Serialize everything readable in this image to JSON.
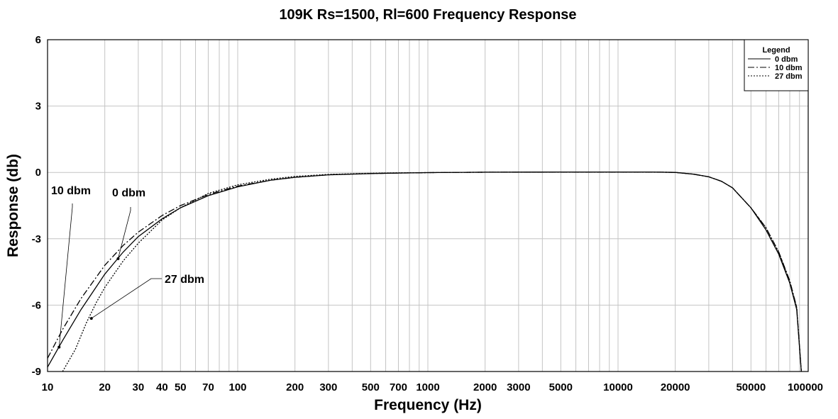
{
  "chart_data": {
    "type": "line",
    "title": "109K Rs=1500, Rl=600 Frequency Response",
    "xlabel": "Frequency (Hz)",
    "ylabel": "Response (db)",
    "xscale": "log",
    "xlim": [
      10,
      100000
    ],
    "ylim": [
      -9,
      6
    ],
    "x_ticks": [
      10,
      20,
      30,
      40,
      50,
      70,
      100,
      200,
      300,
      500,
      700,
      1000,
      2000,
      3000,
      5000,
      10000,
      20000,
      50000,
      100000
    ],
    "x_tick_labels": [
      "10",
      "20",
      "30",
      "40",
      "50",
      "70",
      "100",
      "200",
      "300",
      "500",
      "700",
      "1000",
      "2000",
      "3000",
      "5000",
      "10000",
      "20000",
      "50000",
      "100000"
    ],
    "y_ticks": [
      -9,
      -6,
      -3,
      0,
      3,
      6
    ],
    "y_tick_labels": [
      "-9",
      "-6",
      "-3",
      "0",
      "3",
      "6"
    ],
    "grid": true,
    "legend": {
      "title": "Legend",
      "placement": "top-right",
      "entries": [
        "0 dbm",
        "10 dbm",
        "27 dbm"
      ]
    },
    "series": [
      {
        "name": "0 dbm",
        "style": "solid",
        "x": [
          10,
          12,
          15,
          20,
          25,
          30,
          40,
          50,
          70,
          100,
          150,
          200,
          300,
          500,
          700,
          1000,
          2000,
          5000,
          10000,
          15000,
          20000,
          25000,
          30000,
          35000,
          40000,
          50000,
          60000,
          70000,
          80000,
          87000,
          92000
        ],
        "y": [
          -8.8,
          -7.6,
          -6.2,
          -4.6,
          -3.6,
          -2.9,
          -2.1,
          -1.6,
          -1.05,
          -0.65,
          -0.35,
          -0.22,
          -0.11,
          -0.05,
          -0.03,
          -0.01,
          0.01,
          0.02,
          0.02,
          0.02,
          0.0,
          -0.08,
          -0.2,
          -0.4,
          -0.7,
          -1.6,
          -2.6,
          -3.7,
          -5.0,
          -6.2,
          -9.0
        ]
      },
      {
        "name": "10 dbm",
        "style": "dashdot",
        "x": [
          10,
          12,
          15,
          20,
          25,
          30,
          40,
          50,
          70,
          100,
          150,
          200,
          300,
          500,
          700,
          1000,
          2000,
          5000,
          10000,
          15000,
          20000,
          25000,
          30000,
          35000,
          40000,
          50000,
          60000,
          70000,
          80000,
          87000,
          92000
        ],
        "y": [
          -8.4,
          -7.1,
          -5.7,
          -4.2,
          -3.3,
          -2.7,
          -1.95,
          -1.5,
          -1.0,
          -0.62,
          -0.35,
          -0.22,
          -0.11,
          -0.05,
          -0.03,
          -0.01,
          0.01,
          0.02,
          0.02,
          0.02,
          0.0,
          -0.08,
          -0.2,
          -0.4,
          -0.7,
          -1.6,
          -2.5,
          -3.6,
          -4.9,
          -6.1,
          -9.0
        ]
      },
      {
        "name": "27 dbm",
        "style": "dotted",
        "x": [
          12,
          14,
          16,
          18,
          20,
          25,
          30,
          40,
          50,
          70,
          100,
          150,
          200,
          300,
          500,
          700,
          1000,
          2000,
          5000,
          10000,
          15000,
          20000,
          25000,
          30000,
          35000,
          40000,
          50000,
          60000,
          70000,
          80000,
          87000,
          92000
        ],
        "y": [
          -9.0,
          -8.0,
          -6.8,
          -5.9,
          -5.2,
          -4.0,
          -3.2,
          -2.15,
          -1.6,
          -0.95,
          -0.56,
          -0.3,
          -0.18,
          -0.09,
          -0.04,
          -0.02,
          -0.01,
          0.01,
          0.02,
          0.02,
          0.02,
          0.0,
          -0.08,
          -0.2,
          -0.4,
          -0.7,
          -1.6,
          -2.5,
          -3.6,
          -4.9,
          -6.1,
          -9.0
        ]
      }
    ],
    "annotations": [
      {
        "text": "10 dbm",
        "target_x": 11.5,
        "target_y": -7.9
      },
      {
        "text": "0 dbm",
        "target_x": 23.5,
        "target_y": -3.9
      },
      {
        "text": "27 dbm",
        "target_x": 17,
        "target_y": -6.6
      }
    ]
  }
}
